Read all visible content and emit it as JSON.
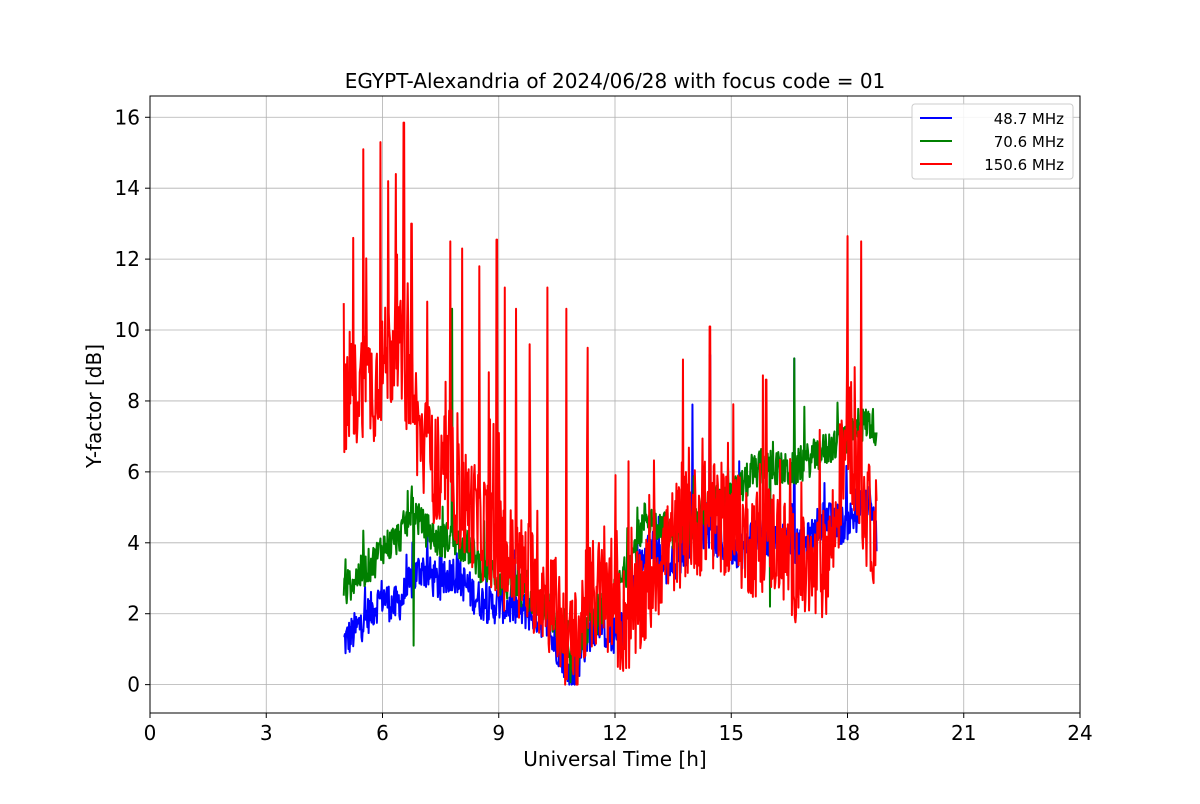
{
  "chart_data": {
    "type": "line",
    "title": "EGYPT-Alexandria of 2024/06/28 with focus code = 01",
    "xlabel": "Universal Time [h]",
    "ylabel": "Y-factor [dB]",
    "xlim": [
      0,
      24
    ],
    "ylim": [
      -0.8,
      16.6
    ],
    "xticks": [
      0,
      3,
      6,
      9,
      12,
      15,
      18,
      21,
      24
    ],
    "yticks": [
      0,
      2,
      4,
      6,
      8,
      10,
      12,
      14,
      16
    ],
    "grid": true,
    "legend_position": "top-right",
    "series": [
      {
        "name": "48.7 MHz",
        "color": "#0000ff",
        "x": [
          5.0,
          5.2,
          5.5,
          5.8,
          6.0,
          6.3,
          6.5,
          6.8,
          7.0,
          7.3,
          7.5,
          7.8,
          8.0,
          8.3,
          8.5,
          8.8,
          9.0,
          9.3,
          9.6,
          9.9,
          10.2,
          10.4,
          10.6,
          10.8,
          10.9,
          11.1,
          11.3,
          11.6,
          11.9,
          12.2,
          12.5,
          12.8,
          13.0,
          13.3,
          13.6,
          13.9,
          14.1,
          14.4,
          14.7,
          15.0,
          15.3,
          15.6,
          15.9,
          16.2,
          16.5,
          16.8,
          17.1,
          17.4,
          17.7,
          18.0,
          18.3,
          18.6,
          18.75
        ],
        "y": [
          1.2,
          1.4,
          1.8,
          2.2,
          2.5,
          2.2,
          2.4,
          3.0,
          3.3,
          3.0,
          2.8,
          3.2,
          3.0,
          2.6,
          2.4,
          2.2,
          2.3,
          2.2,
          2.1,
          2.0,
          1.8,
          1.2,
          1.0,
          0.3,
          0.2,
          0.8,
          1.4,
          1.8,
          1.3,
          1.6,
          2.8,
          4.0,
          3.8,
          3.3,
          3.5,
          4.0,
          4.5,
          4.3,
          4.0,
          3.9,
          3.8,
          4.3,
          4.0,
          4.2,
          4.0,
          3.8,
          4.2,
          4.8,
          4.4,
          4.6,
          4.9,
          5.1,
          4.2
        ],
        "noise": 0.55,
        "spikes": [
          [
            14.45,
            9.3
          ],
          [
            16.62,
            9.2
          ],
          [
            14.0,
            7.9
          ],
          [
            15.2,
            6.3
          ]
        ]
      },
      {
        "name": "70.6 MHz",
        "color": "#008000",
        "x": [
          5.0,
          5.2,
          5.5,
          5.8,
          6.0,
          6.3,
          6.5,
          6.8,
          7.0,
          7.3,
          7.5,
          7.8,
          8.0,
          8.3,
          8.5,
          8.8,
          9.0,
          9.3,
          9.6,
          9.9,
          10.2,
          10.4,
          10.6,
          10.8,
          10.9,
          11.1,
          11.3,
          11.6,
          11.9,
          12.2,
          12.5,
          12.8,
          13.0,
          13.3,
          13.6,
          13.9,
          14.1,
          14.4,
          14.7,
          15.0,
          15.3,
          15.6,
          15.9,
          16.2,
          16.5,
          16.8,
          17.1,
          17.4,
          17.7,
          18.0,
          18.3,
          18.6,
          18.75
        ],
        "y": [
          2.6,
          2.9,
          3.2,
          3.5,
          3.9,
          4.0,
          4.3,
          5.0,
          4.5,
          4.2,
          4.0,
          4.2,
          4.0,
          3.8,
          3.4,
          3.2,
          3.0,
          2.8,
          2.6,
          2.4,
          2.2,
          1.9,
          1.2,
          0.6,
          0.5,
          1.0,
          1.6,
          2.0,
          2.3,
          3.0,
          3.8,
          4.8,
          4.6,
          4.4,
          4.3,
          4.4,
          4.6,
          5.0,
          5.2,
          5.3,
          5.6,
          6.0,
          6.2,
          6.1,
          6.0,
          6.2,
          6.4,
          6.6,
          6.8,
          7.0,
          7.3,
          7.4,
          7.2
        ],
        "noise": 0.5,
        "spikes": [
          [
            7.8,
            10.6
          ],
          [
            16.62,
            9.2
          ],
          [
            6.8,
            1.1
          ],
          [
            16.0,
            2.2
          ]
        ]
      },
      {
        "name": "150.6 MHz",
        "color": "#ff0000",
        "x": [
          5.0,
          5.2,
          5.5,
          5.8,
          6.0,
          6.3,
          6.5,
          6.8,
          7.0,
          7.3,
          7.5,
          7.8,
          8.0,
          8.3,
          8.5,
          8.8,
          9.0,
          9.3,
          9.6,
          9.9,
          10.2,
          10.4,
          10.6,
          10.8,
          10.9,
          11.1,
          11.3,
          11.6,
          11.9,
          12.2,
          12.5,
          12.8,
          13.0,
          13.3,
          13.6,
          13.9,
          14.1,
          14.4,
          14.7,
          15.0,
          15.3,
          15.6,
          15.9,
          16.2,
          16.5,
          16.8,
          17.1,
          17.4,
          17.7,
          18.0,
          18.3,
          18.6,
          18.75
        ],
        "y": [
          7.5,
          8.0,
          8.6,
          8.4,
          9.0,
          9.5,
          9.2,
          8.0,
          6.8,
          6.2,
          5.5,
          5.8,
          5.2,
          4.9,
          4.6,
          4.3,
          3.8,
          3.5,
          3.2,
          3.0,
          2.6,
          2.2,
          1.8,
          1.0,
          0.8,
          1.6,
          2.4,
          2.6,
          2.2,
          1.8,
          2.0,
          2.6,
          3.2,
          3.8,
          4.2,
          4.6,
          4.6,
          4.8,
          4.7,
          4.5,
          4.2,
          4.0,
          4.2,
          4.0,
          3.5,
          3.2,
          3.0,
          3.4,
          4.5,
          7.5,
          5.5,
          4.5,
          4.3
        ],
        "noise": 1.6,
        "spikes": [
          [
            5.25,
            12.6
          ],
          [
            5.5,
            15.1
          ],
          [
            5.95,
            15.3
          ],
          [
            6.15,
            14.2
          ],
          [
            6.35,
            14.4
          ],
          [
            6.55,
            15.85
          ],
          [
            6.75,
            13.0
          ],
          [
            7.15,
            10.8
          ],
          [
            7.75,
            12.5
          ],
          [
            8.05,
            12.3
          ],
          [
            8.5,
            11.8
          ],
          [
            8.95,
            12.55
          ],
          [
            9.15,
            11.2
          ],
          [
            9.45,
            10.6
          ],
          [
            9.8,
            9.6
          ],
          [
            10.25,
            11.2
          ],
          [
            10.75,
            10.6
          ],
          [
            11.3,
            9.5
          ],
          [
            14.45,
            10.1
          ],
          [
            18.0,
            12.65
          ],
          [
            18.35,
            12.5
          ],
          [
            15.9,
            8.6
          ],
          [
            12.35,
            6.3
          ]
        ]
      }
    ]
  }
}
